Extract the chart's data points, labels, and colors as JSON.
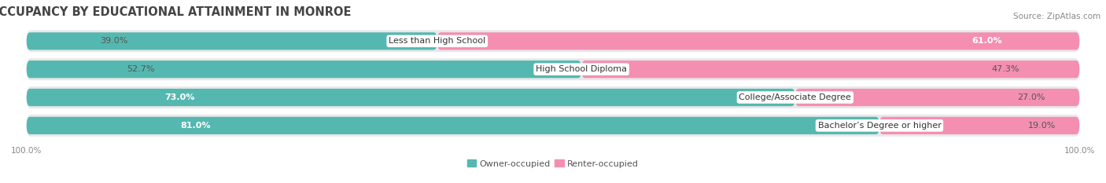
{
  "title": "OCCUPANCY BY EDUCATIONAL ATTAINMENT IN MONROE",
  "source": "Source: ZipAtlas.com",
  "categories": [
    "Less than High School",
    "High School Diploma",
    "College/Associate Degree",
    "Bachelor’s Degree or higher"
  ],
  "owner_values": [
    39.0,
    52.7,
    73.0,
    81.0
  ],
  "renter_values": [
    61.0,
    47.3,
    27.0,
    19.0
  ],
  "owner_color": "#55B8B0",
  "renter_color": "#F48FB1",
  "row_bg_color": "#E8E8E8",
  "owner_label": "Owner-occupied",
  "renter_label": "Renter-occupied",
  "title_fontsize": 10.5,
  "source_fontsize": 7.5,
  "cat_fontsize": 8,
  "pct_fontsize": 8,
  "axis_label_fontsize": 7.5,
  "legend_fontsize": 8
}
